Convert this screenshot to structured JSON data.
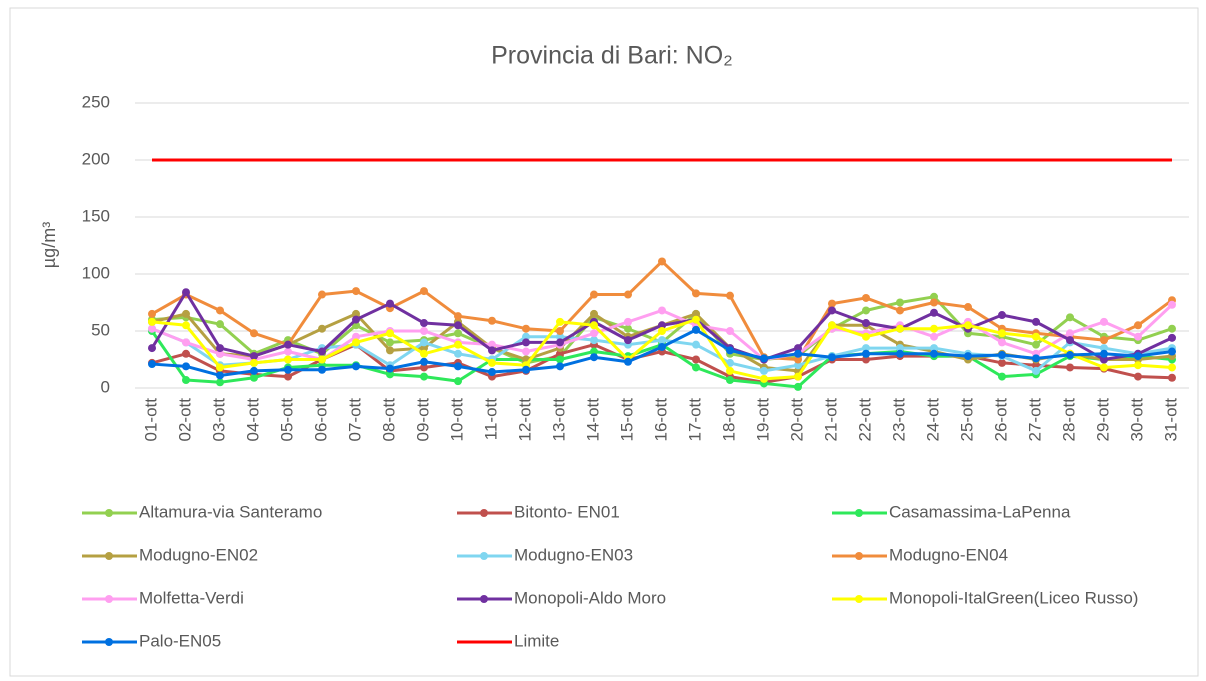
{
  "chart_data": {
    "type": "line",
    "title": "Provincia di Bari: NO₂",
    "y_label": "µg/m³",
    "categories": [
      "01-ott",
      "02-ott",
      "03-ott",
      "04-ott",
      "05-ott",
      "06-ott",
      "07-ott",
      "08-ott",
      "09-ott",
      "10-ott",
      "11-ott",
      "12-ott",
      "13-ott",
      "14-ott",
      "15-ott",
      "16-ott",
      "17-ott",
      "18-ott",
      "19-ott",
      "20-ott",
      "21-ott",
      "22-ott",
      "23-ott",
      "24-ott",
      "25-ott",
      "26-ott",
      "27-ott",
      "28-ott",
      "29-ott",
      "30-ott",
      "31-ott"
    ],
    "ylim": [
      0,
      250
    ],
    "yticks": [
      0,
      50,
      100,
      150,
      200,
      250
    ],
    "grid": true,
    "legend": "bottom",
    "series": [
      {
        "name": "Altamura-via Santeramo",
        "color": "#92d050",
        "values": [
          60,
          62,
          56,
          30,
          42,
          30,
          55,
          40,
          42,
          48,
          35,
          22,
          28,
          62,
          52,
          40,
          65,
          30,
          25,
          28,
          52,
          68,
          75,
          80,
          48,
          45,
          38,
          62,
          45,
          42,
          52
        ]
      },
      {
        "name": "Bitonto- EN01",
        "color": "#c0504d",
        "values": [
          22,
          30,
          15,
          12,
          10,
          25,
          38,
          15,
          18,
          22,
          10,
          15,
          30,
          38,
          25,
          32,
          25,
          10,
          5,
          10,
          25,
          25,
          28,
          28,
          28,
          22,
          20,
          18,
          17,
          10,
          9
        ]
      },
      {
        "name": "Casamassima-LaPenna",
        "color": "#2ee85a",
        "values": [
          50,
          7,
          5,
          9,
          18,
          20,
          20,
          12,
          10,
          6,
          25,
          25,
          25,
          32,
          28,
          38,
          18,
          7,
          4,
          1,
          28,
          30,
          32,
          28,
          28,
          10,
          12,
          28,
          25,
          28,
          25
        ]
      },
      {
        "name": "Modugno-EN02",
        "color": "#b5a042",
        "values": [
          58,
          65,
          30,
          28,
          38,
          52,
          65,
          33,
          35,
          58,
          35,
          25,
          35,
          65,
          45,
          55,
          65,
          35,
          18,
          15,
          55,
          55,
          38,
          32,
          25,
          30,
          25,
          30,
          25,
          25,
          28
        ]
      },
      {
        "name": "Modugno-EN03",
        "color": "#7fd6f0",
        "values": [
          52,
          40,
          20,
          22,
          25,
          35,
          38,
          20,
          40,
          30,
          25,
          45,
          45,
          42,
          38,
          42,
          38,
          22,
          15,
          20,
          28,
          35,
          35,
          35,
          30,
          28,
          15,
          40,
          35,
          30,
          35
        ]
      },
      {
        "name": "Modugno-EN04",
        "color": "#f08c3c",
        "values": [
          65,
          82,
          68,
          48,
          38,
          82,
          85,
          70,
          85,
          63,
          59,
          52,
          50,
          82,
          82,
          111,
          83,
          81,
          27,
          25,
          74,
          79,
          68,
          75,
          71,
          52,
          48,
          45,
          42,
          55,
          77
        ]
      },
      {
        "name": "Molfetta-Verdi",
        "color": "#ff9ff0",
        "values": [
          52,
          40,
          30,
          25,
          32,
          25,
          45,
          50,
          50,
          40,
          38,
          32,
          38,
          48,
          58,
          68,
          55,
          50,
          25,
          30,
          52,
          48,
          55,
          45,
          58,
          40,
          30,
          48,
          58,
          45,
          73
        ]
      },
      {
        "name": "Monopoli-Aldo Moro",
        "color": "#7030a0",
        "values": [
          35,
          84,
          35,
          28,
          38,
          32,
          60,
          74,
          57,
          55,
          33,
          40,
          40,
          58,
          42,
          55,
          60,
          35,
          25,
          35,
          68,
          57,
          52,
          66,
          52,
          64,
          58,
          42,
          25,
          30,
          44
        ]
      },
      {
        "name": "Monopoli-ItalGreen(Liceo Russo)",
        "color": "#ffff00",
        "values": [
          58,
          55,
          18,
          22,
          25,
          25,
          40,
          48,
          30,
          38,
          22,
          20,
          58,
          55,
          25,
          50,
          60,
          15,
          8,
          10,
          55,
          45,
          52,
          52,
          55,
          48,
          45,
          30,
          18,
          20,
          18
        ]
      },
      {
        "name": "Palo-EN05",
        "color": "#0070e0",
        "values": [
          21,
          19,
          11,
          15,
          16,
          16,
          19,
          17,
          23,
          19,
          14,
          16,
          19,
          27,
          23,
          36,
          51,
          33,
          26,
          30,
          27,
          30,
          30,
          30,
          28,
          29,
          26,
          29,
          30,
          28,
          32
        ]
      },
      {
        "name": "Limite",
        "color": "#ff0000",
        "marker": false,
        "values": [
          200,
          200,
          200,
          200,
          200,
          200,
          200,
          200,
          200,
          200,
          200,
          200,
          200,
          200,
          200,
          200,
          200,
          200,
          200,
          200,
          200,
          200,
          200,
          200,
          200,
          200,
          200,
          200,
          200,
          200,
          200
        ]
      }
    ]
  }
}
